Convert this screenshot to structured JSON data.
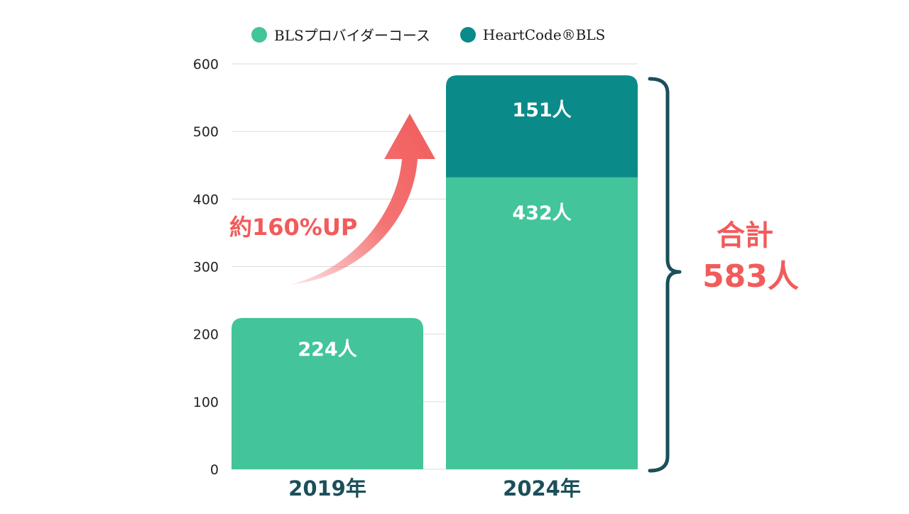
{
  "colors": {
    "series_primary": "#43C49A",
    "series_secondary": "#0A8B8A",
    "grid": "#dcdcdc",
    "axis_text": "#222222",
    "bar_label_text": "#ffffff",
    "category_text": "#1b4f5a",
    "accent": "#F25B5B",
    "brace": "#1b4f5a"
  },
  "legend": [
    {
      "label": "BLSプロバイダーコース",
      "color": "#43C49A"
    },
    {
      "label": "HeartCode®BLS",
      "color": "#0A8B8A"
    }
  ],
  "chart_data": {
    "type": "bar",
    "stacked": true,
    "categories": [
      "2019年",
      "2024年"
    ],
    "series": [
      {
        "name": "BLSプロバイダーコース",
        "values": [
          224,
          432
        ],
        "labels": [
          "224人",
          "432人"
        ]
      },
      {
        "name": "HeartCode®BLS",
        "values": [
          0,
          151
        ],
        "labels": [
          "",
          "151人"
        ]
      }
    ],
    "ylim": [
      0,
      600
    ],
    "yticks": [
      0,
      100,
      200,
      300,
      400,
      500,
      600
    ],
    "grid": true,
    "legend_position": "top",
    "annotations": {
      "growth_label": "約160%UP",
      "total_label": "合計",
      "total_value": "583人"
    }
  }
}
